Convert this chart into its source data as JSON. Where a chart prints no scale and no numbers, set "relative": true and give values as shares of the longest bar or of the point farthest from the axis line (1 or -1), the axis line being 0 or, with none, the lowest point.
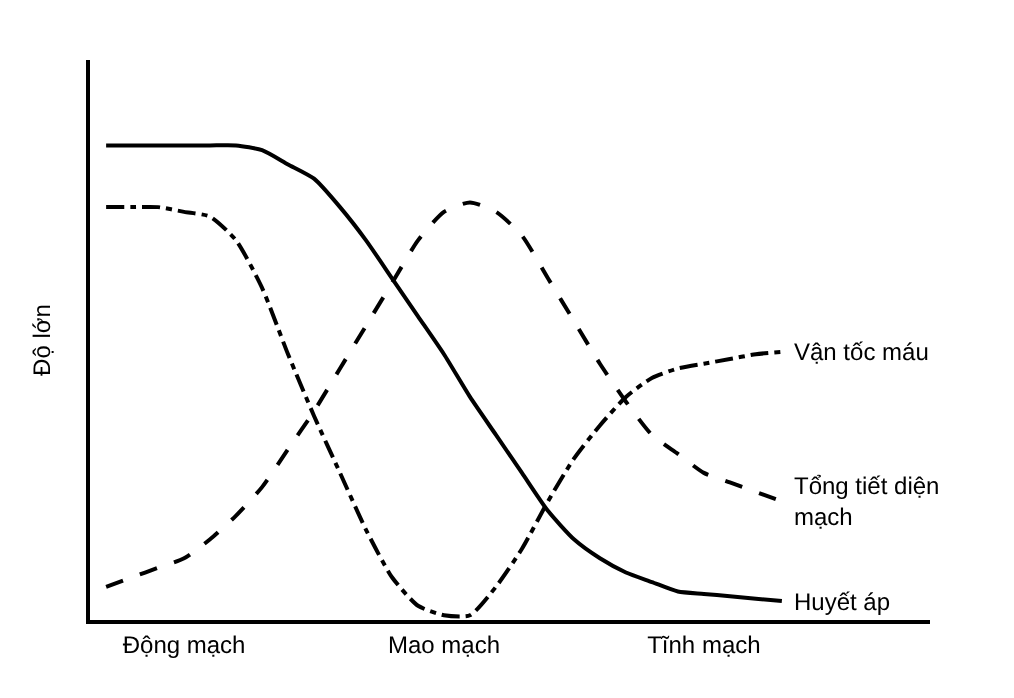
{
  "chart_data": {
    "type": "line",
    "relative": true,
    "ylabel": "Độ lớn",
    "categories": [
      null,
      null,
      null,
      "Động mạch",
      null,
      null,
      null,
      null,
      null,
      null,
      null,
      null,
      null,
      "Mao mạch",
      null,
      null,
      null,
      null,
      null,
      null,
      null,
      null,
      null,
      "Tĩnh mạch",
      null,
      null,
      null
    ],
    "legend": false,
    "series": [
      {
        "name": "Vận tốc máu",
        "color": "#000000",
        "line_style": "dashdot",
        "values": [
          0.87,
          0.87,
          0.87,
          0.86,
          0.85,
          0.8,
          0.7,
          0.56,
          0.43,
          0.31,
          0.19,
          0.09,
          0.03,
          0.01,
          0.01,
          0.07,
          0.15,
          0.25,
          0.34,
          0.41,
          0.47,
          0.51,
          0.53,
          0.54,
          0.55,
          0.56,
          0.565
        ]
      },
      {
        "name": "Tổng tiết diện mạch",
        "color": "#000000",
        "line_style": "dashed",
        "values": [
          0.07,
          0.09,
          0.11,
          0.13,
          0.17,
          0.22,
          0.28,
          0.36,
          0.44,
          0.53,
          0.62,
          0.71,
          0.8,
          0.86,
          0.88,
          0.86,
          0.81,
          0.72,
          0.63,
          0.54,
          0.46,
          0.39,
          0.35,
          0.31,
          0.29,
          0.27,
          0.25
        ]
      },
      {
        "name": "Huyết áp",
        "color": "#000000",
        "line_style": "solid",
        "values": [
          1.0,
          1.0,
          1.0,
          1.0,
          1.0,
          1.0,
          0.99,
          0.96,
          0.93,
          0.87,
          0.8,
          0.72,
          0.64,
          0.56,
          0.47,
          0.39,
          0.31,
          0.23,
          0.17,
          0.13,
          0.1,
          0.08,
          0.06,
          0.055,
          0.05,
          0.045,
          0.04
        ]
      }
    ]
  }
}
